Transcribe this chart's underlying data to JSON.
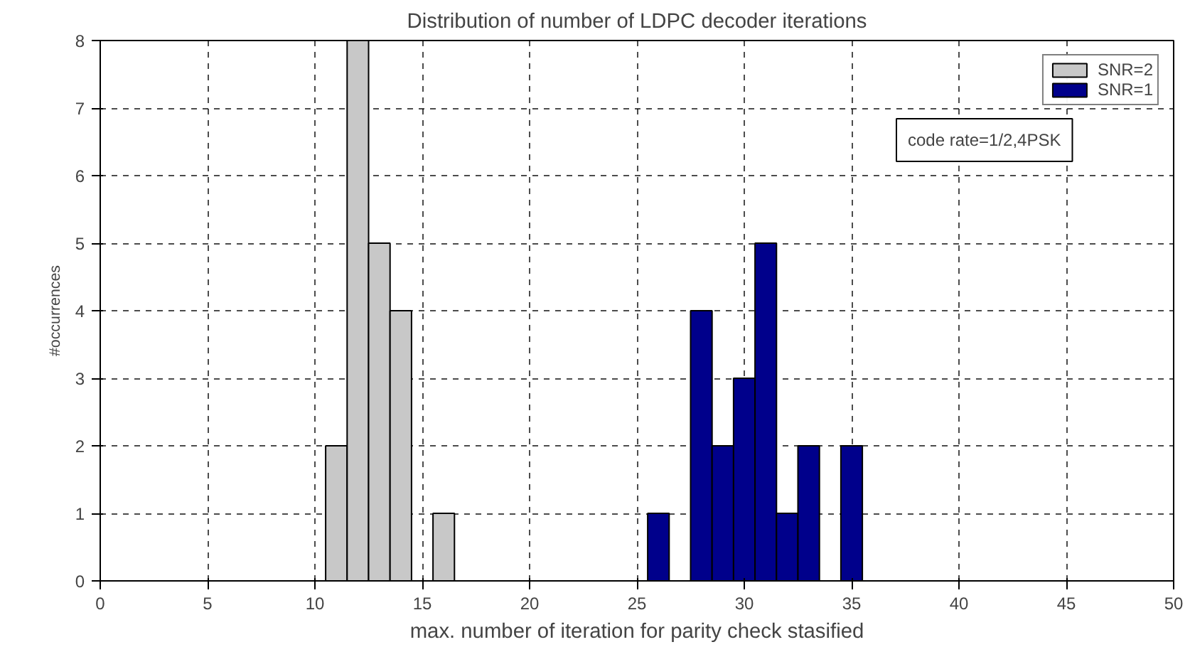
{
  "chart_data": {
    "type": "bar",
    "title": "Distribution of number of LDPC decoder iterations",
    "xlabel": "max. number of iteration for parity check stasified",
    "ylabel": "#occurrences",
    "series": [
      {
        "name": "SNR=2",
        "color": "#c8c8c8",
        "x": [
          11,
          12,
          13,
          14,
          16
        ],
        "values": [
          2,
          8,
          5,
          4,
          1
        ]
      },
      {
        "name": "SNR=1",
        "color": "#00008b",
        "x": [
          26,
          28,
          29,
          30,
          31,
          32,
          33,
          35
        ],
        "values": [
          1,
          4,
          2,
          3,
          5,
          1,
          2,
          2
        ]
      }
    ],
    "xlim": [
      0,
      50
    ],
    "xticks": [
      0,
      5,
      10,
      15,
      20,
      25,
      30,
      35,
      40,
      45,
      50
    ],
    "ylim": [
      0,
      8
    ],
    "yticks": [
      0,
      1,
      2,
      3,
      4,
      5,
      6,
      7,
      8
    ],
    "grid": true,
    "legend": "top right",
    "annotations": [
      "code rate=1/2,4PSK"
    ]
  }
}
